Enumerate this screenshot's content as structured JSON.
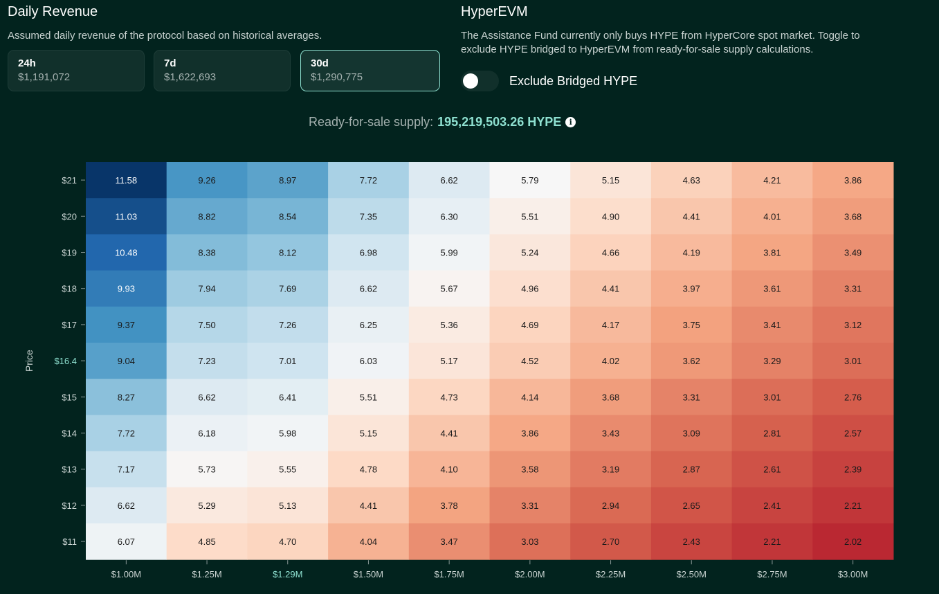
{
  "daily_revenue": {
    "title": "Daily Revenue",
    "description": "Assumed daily revenue of the protocol based on historical averages.",
    "cards": [
      {
        "label": "24h",
        "value": "$1,191,072"
      },
      {
        "label": "7d",
        "value": "$1,622,693"
      },
      {
        "label": "30d",
        "value": "$1,290,775"
      }
    ],
    "selected": "30d"
  },
  "hyperevm": {
    "title": "HyperEVM",
    "description_line1": "The Assistance Fund currently only buys HYPE from HyperCore spot market. Toggle to",
    "description_line2": "exclude HYPE bridged to HyperEVM from ready-for-sale supply calculations.",
    "toggle_label": "Exclude Bridged HYPE",
    "toggle_on": false
  },
  "supply": {
    "label": "Ready-for-sale supply:",
    "value": "195,219,503.26 HYPE",
    "info_glyph": "i"
  },
  "colors": {
    "background": "#02231e",
    "accent": "#8ee0d0"
  },
  "chart_data": {
    "type": "heatmap",
    "title": "",
    "xlabel": "",
    "ylabel": "Price",
    "x_categories": [
      "$1.00M",
      "$1.25M",
      "$1.29M",
      "$1.50M",
      "$1.75M",
      "$2.00M",
      "$2.25M",
      "$2.50M",
      "$2.75M",
      "$3.00M"
    ],
    "y_categories": [
      "$21",
      "$20",
      "$19",
      "$18",
      "$17",
      "$16.4",
      "$15",
      "$14",
      "$13",
      "$12",
      "$11"
    ],
    "highlight_x": "$1.29M",
    "highlight_y": "$16.4",
    "values": [
      [
        11.58,
        9.26,
        8.97,
        7.72,
        6.62,
        5.79,
        5.15,
        4.63,
        4.21,
        3.86
      ],
      [
        11.03,
        8.82,
        8.54,
        7.35,
        6.3,
        5.51,
        4.9,
        4.41,
        4.01,
        3.68
      ],
      [
        10.48,
        8.38,
        8.12,
        6.98,
        5.99,
        5.24,
        4.66,
        4.19,
        3.81,
        3.49
      ],
      [
        9.93,
        7.94,
        7.69,
        6.62,
        5.67,
        4.96,
        4.41,
        3.97,
        3.61,
        3.31
      ],
      [
        9.37,
        7.5,
        7.26,
        6.25,
        5.36,
        4.69,
        4.17,
        3.75,
        3.41,
        3.12
      ],
      [
        9.04,
        7.23,
        7.01,
        6.03,
        5.17,
        4.52,
        4.02,
        3.62,
        3.29,
        3.01
      ],
      [
        8.27,
        6.62,
        6.41,
        5.51,
        4.73,
        4.14,
        3.68,
        3.31,
        3.01,
        2.76
      ],
      [
        7.72,
        6.18,
        5.98,
        5.15,
        4.41,
        3.86,
        3.43,
        3.09,
        2.81,
        2.57
      ],
      [
        7.17,
        5.73,
        5.55,
        4.78,
        4.1,
        3.58,
        3.19,
        2.87,
        2.61,
        2.39
      ],
      [
        6.62,
        5.29,
        5.13,
        4.41,
        3.78,
        3.31,
        2.94,
        2.65,
        2.41,
        2.21
      ],
      [
        6.07,
        4.85,
        4.7,
        4.04,
        3.47,
        3.03,
        2.7,
        2.43,
        2.21,
        2.02
      ]
    ],
    "value_labels": [
      [
        "11.58",
        "9.26",
        "8.97",
        "7.72",
        "6.62",
        "5.79",
        "5.15",
        "4.63",
        "4.21",
        "3.86"
      ],
      [
        "11.03",
        "8.82",
        "8.54",
        "7.35",
        "6.30",
        "5.51",
        "4.90",
        "4.41",
        "4.01",
        "3.68"
      ],
      [
        "10.48",
        "8.38",
        "8.12",
        "6.98",
        "5.99",
        "5.24",
        "4.66",
        "4.19",
        "3.81",
        "3.49"
      ],
      [
        "9.93",
        "7.94",
        "7.69",
        "6.62",
        "5.67",
        "4.96",
        "4.41",
        "3.97",
        "3.61",
        "3.31"
      ],
      [
        "9.37",
        "7.50",
        "7.26",
        "6.25",
        "5.36",
        "4.69",
        "4.17",
        "3.75",
        "3.41",
        "3.12"
      ],
      [
        "9.04",
        "7.23",
        "7.01",
        "6.03",
        "5.17",
        "4.52",
        "4.02",
        "3.62",
        "3.29",
        "3.01"
      ],
      [
        "8.27",
        "6.62",
        "6.41",
        "5.51",
        "4.73",
        "4.14",
        "3.68",
        "3.31",
        "3.01",
        "2.76"
      ],
      [
        "7.72",
        "6.18",
        "5.98",
        "5.15",
        "4.41",
        "3.86",
        "3.43",
        "3.09",
        "2.81",
        "2.57"
      ],
      [
        "7.17",
        "5.73",
        "5.55",
        "4.78",
        "4.10",
        "3.58",
        "3.19",
        "2.87",
        "2.61",
        "2.39"
      ],
      [
        "6.62",
        "5.29",
        "5.13",
        "4.41",
        "3.78",
        "3.31",
        "2.94",
        "2.65",
        "2.41",
        "2.21"
      ],
      [
        "6.07",
        "4.85",
        "4.70",
        "4.04",
        "3.47",
        "3.03",
        "2.70",
        "2.43",
        "2.21",
        "2.02"
      ]
    ],
    "color_scale": "RdBu",
    "center_value": 5.8
  }
}
